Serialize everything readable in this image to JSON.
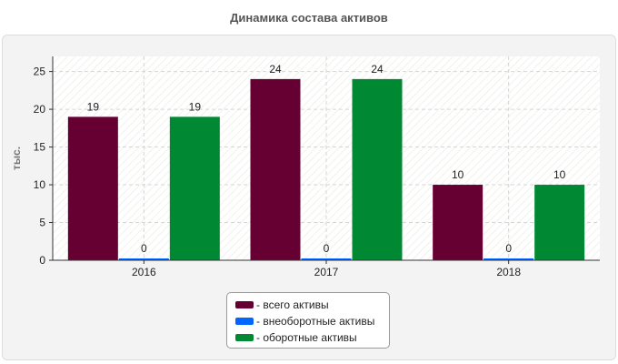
{
  "title": "Динамика состава активов",
  "chart_data": {
    "type": "bar",
    "title": "Динамика состава активов",
    "xlabel": "",
    "ylabel": "тыс.",
    "categories": [
      "2016",
      "2017",
      "2018"
    ],
    "ylim": [
      0,
      27
    ],
    "yticks": [
      0,
      5,
      10,
      15,
      20,
      25
    ],
    "grid": true,
    "legend_position": "bottom-center",
    "series": [
      {
        "name": "- всего активы",
        "values": [
          19,
          24,
          10
        ],
        "color": "#660033"
      },
      {
        "name": "- внеоборотные активы",
        "values": [
          0,
          0,
          0
        ],
        "color": "#0066ff"
      },
      {
        "name": "- оборотные активы",
        "values": [
          19,
          24,
          10
        ],
        "color": "#008833"
      }
    ]
  }
}
